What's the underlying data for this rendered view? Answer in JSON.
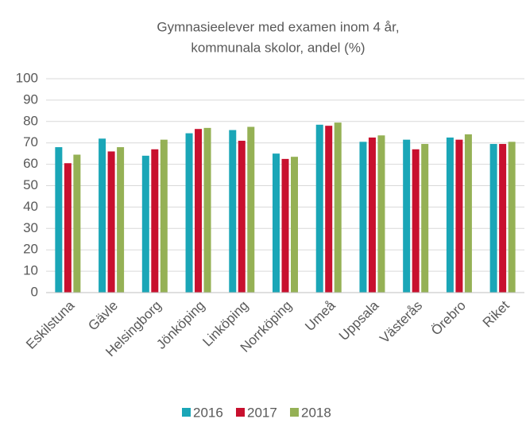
{
  "chart_data": {
    "type": "bar",
    "title": [
      "Gymnasieelever med examen inom 4 år,",
      "kommunala skolor, andel (%)"
    ],
    "categories": [
      "Eskilstuna",
      "Gävle",
      "Helsingborg",
      "Jönköping",
      "Linköping",
      "Norrköping",
      "Umeå",
      "Uppsala",
      "Västerås",
      "Örebro",
      "Riket"
    ],
    "series": [
      {
        "name": "2016",
        "color": "#1aa6b7",
        "values": [
          68,
          72,
          64,
          74.5,
          76,
          65,
          78.5,
          70.5,
          71.5,
          72.5,
          69.5
        ]
      },
      {
        "name": "2017",
        "color": "#c8102e",
        "values": [
          60.5,
          66,
          67,
          76.5,
          71,
          62.5,
          78,
          72.5,
          67,
          71.5,
          69.5
        ]
      },
      {
        "name": "2018",
        "color": "#95b155",
        "values": [
          64.5,
          68,
          71.5,
          77,
          77.5,
          63.5,
          79.5,
          73.5,
          69.5,
          74,
          70.5
        ]
      }
    ],
    "ylim": [
      0,
      100
    ],
    "yticks": [
      0,
      10,
      20,
      30,
      40,
      50,
      60,
      70,
      80,
      90,
      100
    ],
    "grid": true,
    "legend": "bottom"
  }
}
